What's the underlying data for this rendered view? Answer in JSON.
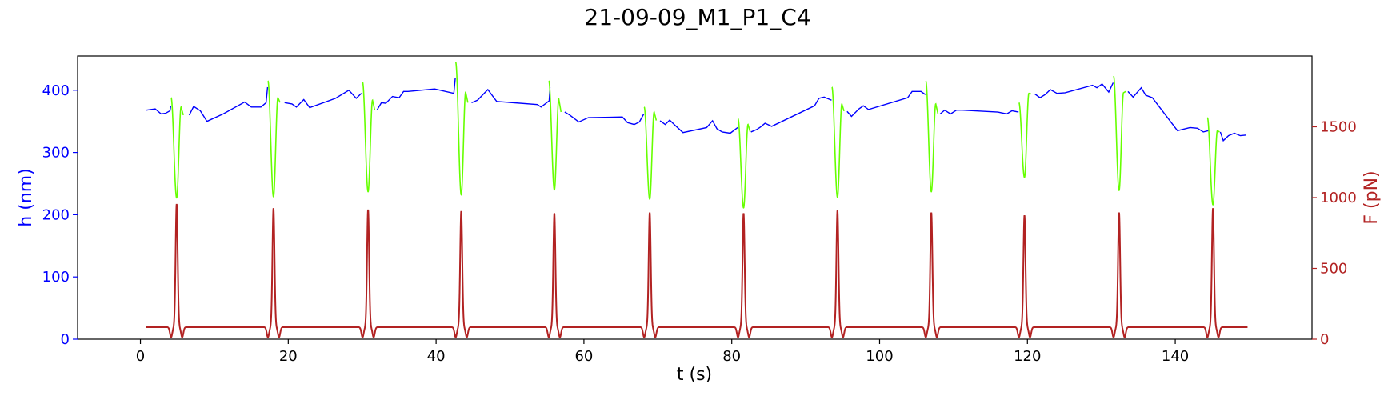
{
  "chart_data": {
    "type": "line",
    "title": "21-09-09_M1_P1_C4",
    "xlabel": "t (s)",
    "ylabel_left": "h (nm)",
    "ylabel_right": "F (pN)",
    "xlim": [
      -8.5,
      158.5
    ],
    "ylim_left": [
      0,
      455
    ],
    "ylim_right": [
      0,
      2000
    ],
    "x_ticks": [
      0,
      20,
      40,
      60,
      80,
      100,
      120,
      140
    ],
    "y_left_ticks": [
      0,
      100,
      200,
      300,
      400
    ],
    "y_right_ticks": [
      0,
      500,
      1000,
      1500
    ],
    "grid": false,
    "colors": {
      "height": "#0000ff",
      "height_during_pulse": "#66ff00",
      "force": "#b22222",
      "left_axis": "#0000ff",
      "right_axis": "#b22222"
    },
    "pulse_times": [
      4.9,
      18.0,
      30.8,
      43.4,
      56.0,
      68.9,
      81.6,
      94.3,
      107.0,
      119.6,
      132.4,
      145.1
    ],
    "pulse_min_height": [
      227,
      229,
      237,
      232,
      240,
      225,
      211,
      228,
      237,
      260,
      239,
      216
    ],
    "pulse_first_peak_height": [
      388,
      415,
      413,
      445,
      415,
      373,
      354,
      405,
      415,
      380,
      423,
      356
    ],
    "pulse_second_peak_height": [
      373,
      388,
      384,
      397,
      386,
      365,
      345,
      378,
      378,
      395,
      396,
      335
    ],
    "force_peak_values": [
      955,
      925,
      915,
      905,
      890,
      895,
      890,
      910,
      895,
      875,
      895,
      925
    ],
    "force_baseline": 85,
    "force_dip_min": 10,
    "height_series": [
      {
        "segment": 0,
        "x": [
          0.8,
          2.0,
          2.8,
          3.4,
          4.0,
          4.1
        ],
        "y": [
          368,
          370,
          362,
          363,
          367,
          375
        ]
      },
      {
        "segment": 1,
        "x": [
          6.6,
          7.2,
          8.1,
          9.0,
          11.2,
          14.1,
          15.0,
          16.3,
          17.0,
          17.2
        ],
        "y": [
          360,
          374,
          367,
          350,
          362,
          381,
          373,
          373,
          380,
          405
        ]
      },
      {
        "segment": 2,
        "x": [
          19.5,
          20.5,
          21.1,
          22.1,
          22.9,
          26.4,
          28.2,
          29.2,
          29.9
        ],
        "y": [
          380,
          378,
          373,
          385,
          372,
          387,
          400,
          387,
          395
        ]
      },
      {
        "segment": 3,
        "x": [
          32.0,
          32.6,
          33.2,
          34.1,
          35.0,
          35.6,
          36.2,
          39.8,
          42.4,
          42.6
        ],
        "y": [
          368,
          380,
          379,
          390,
          388,
          398,
          398,
          402,
          395,
          420
        ]
      },
      {
        "segment": 4,
        "x": [
          44.8,
          45.6,
          47.0,
          48.2,
          53.7,
          54.2,
          55.3,
          55.4
        ],
        "y": [
          380,
          384,
          401,
          382,
          377,
          373,
          383,
          405
        ]
      },
      {
        "segment": 5,
        "x": [
          57.4,
          58.1,
          59.3,
          60.6,
          65.2,
          65.9,
          66.8,
          67.5,
          68.1
        ],
        "y": [
          365,
          360,
          349,
          356,
          357,
          348,
          345,
          349,
          362
        ]
      },
      {
        "segment": 6,
        "x": [
          70.3,
          71.0,
          71.6,
          72.3,
          73.4,
          76.6,
          77.4,
          78.0,
          78.7,
          79.8,
          80.8
        ],
        "y": [
          351,
          345,
          352,
          344,
          332,
          340,
          351,
          338,
          333,
          331,
          340
        ]
      },
      {
        "segment": 7,
        "x": [
          82.6,
          83.4,
          83.9,
          84.5,
          85.4,
          91.2,
          91.8,
          92.5,
          93.5
        ],
        "y": [
          333,
          337,
          341,
          347,
          342,
          375,
          387,
          389,
          384
        ]
      },
      {
        "segment": 8,
        "x": [
          95.6,
          96.2,
          97.2,
          97.8,
          98.5,
          103.8,
          104.4,
          105.6,
          106.2
        ],
        "y": [
          366,
          358,
          370,
          375,
          369,
          388,
          398,
          398,
          393
        ]
      },
      {
        "segment": 8.5,
        "x": [
          108.2,
          108.8,
          109.6,
          110.4,
          111.2,
          116.0,
          117.2,
          117.9,
          118.8
        ],
        "y": [
          362,
          368,
          362,
          368,
          368,
          365,
          362,
          367,
          365
        ]
      },
      {
        "segment": 9,
        "x": [
          121.0,
          121.7,
          122.4,
          123.1,
          124.0,
          125.1,
          128.8,
          129.4,
          130.1,
          131.0,
          131.6
        ],
        "y": [
          394,
          388,
          393,
          401,
          395,
          396,
          408,
          404,
          410,
          397,
          412
        ]
      },
      {
        "segment": 10,
        "x": [
          133.6,
          134.3,
          135.4,
          136.0,
          136.9,
          140.3,
          142.0,
          143.0,
          143.8,
          144.5
        ],
        "y": [
          398,
          389,
          404,
          392,
          388,
          335,
          340,
          339,
          333,
          335
        ]
      },
      {
        "segment": 11,
        "x": [
          146.1,
          146.5,
          147.2,
          148.0,
          148.8,
          149.6
        ],
        "y": [
          333,
          319,
          327,
          331,
          327,
          328
        ]
      }
    ]
  }
}
